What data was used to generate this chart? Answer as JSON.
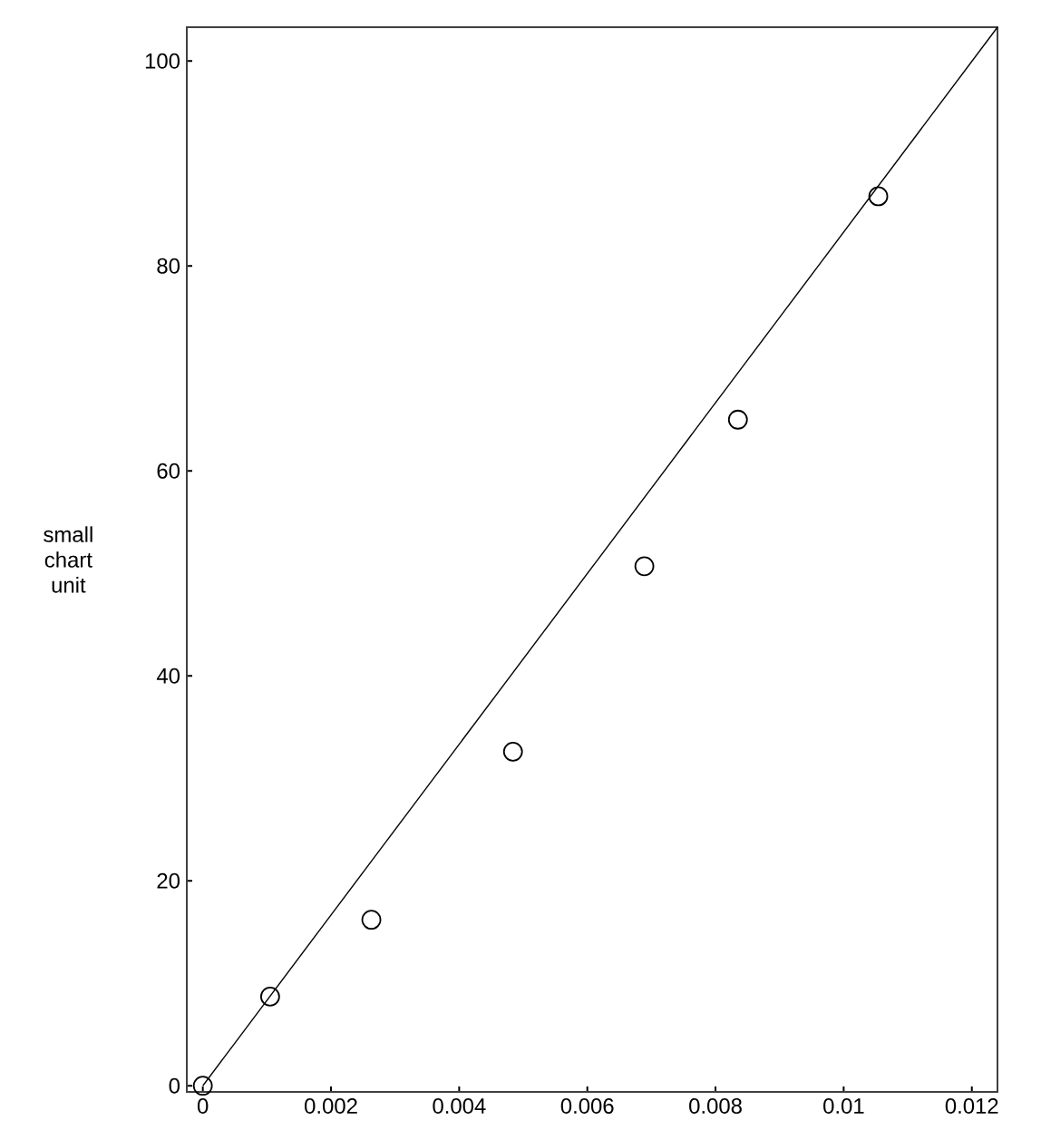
{
  "chart_data": {
    "type": "scatter",
    "ylabel": "small chart unit",
    "xlim": [
      -0.00025,
      0.0124
    ],
    "ylim": [
      -0.6,
      103.3
    ],
    "xticks": [
      0,
      0.002,
      0.004,
      0.006,
      0.008,
      0.01,
      0.012
    ],
    "yticks": [
      0,
      20,
      40,
      60,
      80,
      100
    ],
    "grid": false,
    "legend": false,
    "marker": "circle",
    "series": [
      {
        "color": "#000000",
        "x": [
          0,
          0.00105,
          0.00263,
          0.00484,
          0.00689,
          0.00835,
          0.01054
        ],
        "values": [
          0,
          8.7,
          16.2,
          32.6,
          50.7,
          65,
          86.8
        ]
      },
      {
        "type": "line",
        "color": "#000000",
        "marker": "none",
        "line_style": "solid",
        "x": [
          0,
          0.0124
        ],
        "values": [
          0,
          103.3
        ]
      }
    ]
  }
}
